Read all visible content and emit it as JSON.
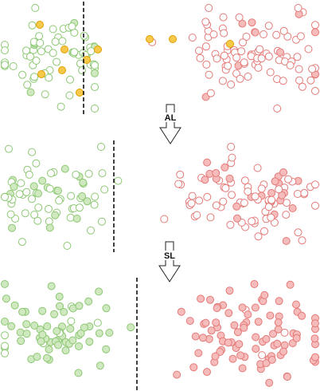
{
  "steps": [
    {
      "label": "AL"
    },
    {
      "label": "SL"
    }
  ],
  "colors": {
    "green_stroke": "#8cc872",
    "green_fill": "#cfe8c0",
    "red_stroke": "#e47a78",
    "red_fill": "#f5bcbb",
    "yellow_stroke": "#e0a000",
    "yellow_fill": "#f6c94a",
    "boundary": "#111111",
    "arrow": "#222222"
  }
}
